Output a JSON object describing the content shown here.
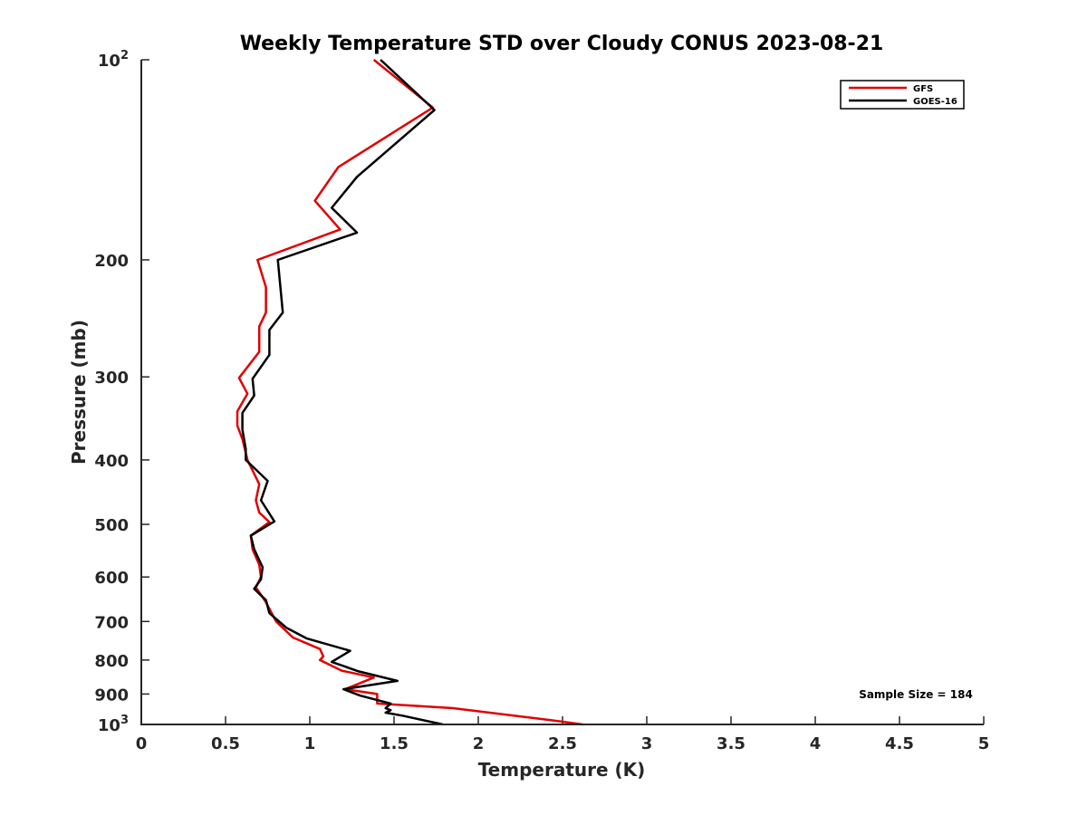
{
  "chart_data": {
    "type": "line",
    "title": "Weekly Temperature STD over Cloudy CONUS 2023-08-21",
    "xlabel": "Temperature (K)",
    "ylabel": "Pressure (mb)",
    "xlim": [
      0,
      5
    ],
    "ylim": [
      100,
      1000
    ],
    "y_scale": "log",
    "y_reversed": true,
    "x_ticks": [
      "0",
      "0.5",
      "1",
      "1.5",
      "2",
      "2.5",
      "3",
      "3.5",
      "4",
      "4.5",
      "5"
    ],
    "y_ticks": [
      {
        "value": 100,
        "base": "10",
        "exp": "2"
      },
      {
        "value": 200,
        "label": "200"
      },
      {
        "value": 300,
        "label": "300"
      },
      {
        "value": 400,
        "label": "400"
      },
      {
        "value": 500,
        "label": "500"
      },
      {
        "value": 600,
        "label": "600"
      },
      {
        "value": 700,
        "label": "700"
      },
      {
        "value": 800,
        "label": "800"
      },
      {
        "value": 900,
        "label": "900"
      },
      {
        "value": 1000,
        "base": "10",
        "exp": "3"
      }
    ],
    "legend_position": "top-right",
    "annotation": "Sample Size = 184",
    "series": [
      {
        "name": "GFS",
        "color": "#e00000",
        "points": [
          [
            1.38,
            100
          ],
          [
            1.73,
            118
          ],
          [
            1.17,
            145
          ],
          [
            1.03,
            163
          ],
          [
            1.18,
            180
          ],
          [
            0.69,
            200
          ],
          [
            0.74,
            220
          ],
          [
            0.74,
            240
          ],
          [
            0.7,
            252
          ],
          [
            0.7,
            275
          ],
          [
            0.58,
            301
          ],
          [
            0.63,
            318
          ],
          [
            0.57,
            338
          ],
          [
            0.57,
            355
          ],
          [
            0.6,
            372
          ],
          [
            0.63,
            400
          ],
          [
            0.7,
            435
          ],
          [
            0.68,
            460
          ],
          [
            0.7,
            480
          ],
          [
            0.76,
            496
          ],
          [
            0.65,
            520
          ],
          [
            0.66,
            545
          ],
          [
            0.7,
            575
          ],
          [
            0.71,
            600
          ],
          [
            0.68,
            622
          ],
          [
            0.74,
            655
          ],
          [
            0.8,
            700
          ],
          [
            0.9,
            740
          ],
          [
            1.06,
            770
          ],
          [
            1.08,
            790
          ],
          [
            1.06,
            800
          ],
          [
            1.19,
            830
          ],
          [
            1.38,
            850
          ],
          [
            1.21,
            885
          ],
          [
            1.4,
            900
          ],
          [
            1.4,
            930
          ],
          [
            1.85,
            945
          ],
          [
            2.43,
            985
          ],
          [
            2.62,
            1000
          ]
        ]
      },
      {
        "name": "GOES-16",
        "color": "#000000",
        "points": [
          [
            1.42,
            100
          ],
          [
            1.74,
            119
          ],
          [
            1.28,
            150
          ],
          [
            1.13,
            167
          ],
          [
            1.28,
            182
          ],
          [
            0.81,
            200
          ],
          [
            0.84,
            240
          ],
          [
            0.76,
            255
          ],
          [
            0.76,
            278
          ],
          [
            0.66,
            302
          ],
          [
            0.67,
            320
          ],
          [
            0.6,
            340
          ],
          [
            0.6,
            360
          ],
          [
            0.62,
            385
          ],
          [
            0.62,
            400
          ],
          [
            0.75,
            430
          ],
          [
            0.71,
            460
          ],
          [
            0.79,
            495
          ],
          [
            0.65,
            520
          ],
          [
            0.67,
            545
          ],
          [
            0.72,
            580
          ],
          [
            0.71,
            605
          ],
          [
            0.67,
            625
          ],
          [
            0.74,
            650
          ],
          [
            0.76,
            680
          ],
          [
            0.86,
            715
          ],
          [
            0.98,
            742
          ],
          [
            1.24,
            775
          ],
          [
            1.13,
            805
          ],
          [
            1.29,
            832
          ],
          [
            1.52,
            860
          ],
          [
            1.2,
            885
          ],
          [
            1.3,
            905
          ],
          [
            1.48,
            930
          ],
          [
            1.45,
            945
          ],
          [
            1.48,
            952
          ],
          [
            1.45,
            960
          ],
          [
            1.55,
            970
          ],
          [
            1.79,
            1000
          ]
        ]
      }
    ]
  }
}
